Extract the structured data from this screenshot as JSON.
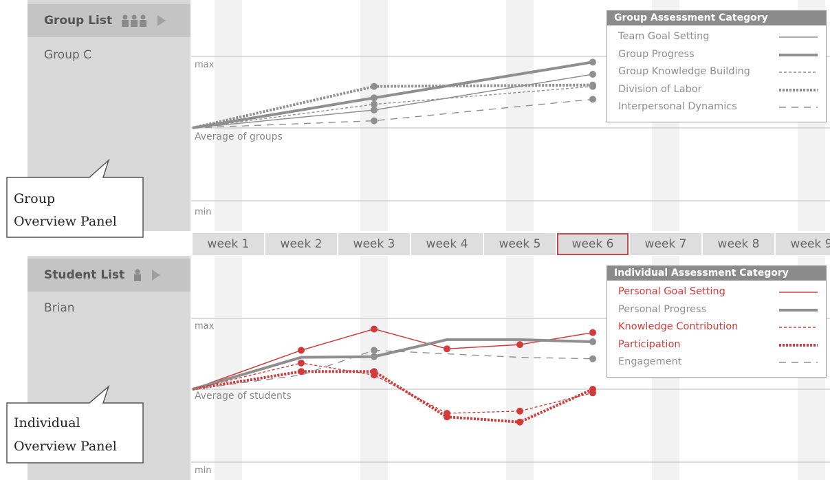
{
  "group_panel": {
    "header": "Group List",
    "item": "Group C",
    "callout": [
      "Group",
      "Overview Panel"
    ],
    "max_label": "max",
    "avg_label": "Average of groups",
    "min_label": "min"
  },
  "student_panel": {
    "header": "Student List",
    "item": "Brian",
    "callout": [
      "Individual",
      "Overview Panel"
    ],
    "max_label": "max",
    "avg_label": "Average of students",
    "min_label": "min"
  },
  "weeks": [
    "week 1",
    "week 2",
    "week 3",
    "week 4",
    "week 5",
    "week 6",
    "week 7",
    "week 8",
    "week 9"
  ],
  "selected_week": "week 6",
  "group_legend": {
    "title": "Group Assessment Category",
    "items": [
      "Team Goal Setting",
      "Group Progress",
      "Group Knowledge Building",
      "Division of Labor",
      "Interpersonal Dynamics"
    ]
  },
  "individual_legend": {
    "title": "Individual Assessment Category",
    "items": [
      "Personal Goal Setting",
      "Personal Progress",
      "Knowledge Contribution",
      "Participation",
      "Engagement"
    ]
  },
  "colors": {
    "grey": "#8f8f8f",
    "red": "#d23b3b",
    "sidebar": "#d8d8d8",
    "header": "#c4c4c4",
    "selected_border": "#c24a4a"
  },
  "chart_data": [
    {
      "type": "line",
      "x": [
        "week 1",
        "week 2",
        "week 3",
        "week 4",
        "week 5",
        "week 6"
      ],
      "ylabels": [
        "max",
        "Average of groups",
        "min"
      ],
      "series": [
        {
          "name": "Team Goal Setting",
          "style": "thin-solid",
          "color": "#8f8f8f",
          "points": [
            [
              "week 1",
              0
            ],
            [
              "week 3",
              0.25
            ],
            [
              "week 6",
              0.75
            ]
          ]
        },
        {
          "name": "Group Progress",
          "style": "thick-solid",
          "color": "#8f8f8f",
          "points": [
            [
              "week 1",
              0
            ],
            [
              "week 3",
              0.42
            ],
            [
              "week 6",
              0.92
            ]
          ]
        },
        {
          "name": "Group Knowledge Building",
          "style": "thin-dashed",
          "color": "#8f8f8f",
          "points": [
            [
              "week 1",
              0
            ],
            [
              "week 3",
              0.33
            ],
            [
              "week 6",
              0.58
            ]
          ]
        },
        {
          "name": "Division of Labor",
          "style": "thick-dotted",
          "color": "#8f8f8f",
          "points": [
            [
              "week 1",
              0
            ],
            [
              "week 3",
              0.58
            ],
            [
              "week 6",
              0.6
            ]
          ]
        },
        {
          "name": "Interpersonal Dynamics",
          "style": "long-dashed",
          "color": "#8f8f8f",
          "points": [
            [
              "week 1",
              0
            ],
            [
              "week 3",
              0.1
            ],
            [
              "week 6",
              0.4
            ]
          ]
        }
      ]
    },
    {
      "type": "line",
      "x": [
        "week 1",
        "week 2",
        "week 3",
        "week 4",
        "week 5",
        "week 6"
      ],
      "ylabels": [
        "max",
        "Average of students",
        "min"
      ],
      "series": [
        {
          "name": "Personal Goal Setting",
          "style": "thin-solid",
          "color": "#d23b3b",
          "highlight": true,
          "points": [
            [
              "week 1",
              0
            ],
            [
              "week 2",
              0.55
            ],
            [
              "week 3",
              0.85
            ],
            [
              "week 4",
              0.57
            ],
            [
              "week 5",
              0.63
            ],
            [
              "week 6",
              0.8
            ]
          ]
        },
        {
          "name": "Personal Progress",
          "style": "thick-solid",
          "color": "#8f8f8f",
          "points": [
            [
              "week 1",
              0
            ],
            [
              "week 2",
              0.45
            ],
            [
              "week 3",
              0.46
            ],
            [
              "week 4",
              0.7
            ],
            [
              "week 5",
              0.7
            ],
            [
              "week 6",
              0.67
            ]
          ]
        },
        {
          "name": "Knowledge Contribution",
          "style": "thin-dashed",
          "color": "#d23b3b",
          "highlight": true,
          "points": [
            [
              "week 1",
              0
            ],
            [
              "week 2",
              0.37
            ],
            [
              "week 3",
              0.2
            ],
            [
              "week 4",
              -0.33
            ],
            [
              "week 5",
              -0.3
            ],
            [
              "week 6",
              -0.05
            ]
          ]
        },
        {
          "name": "Participation",
          "style": "thick-dotted",
          "color": "#d23b3b",
          "highlight": true,
          "points": [
            [
              "week 1",
              0
            ],
            [
              "week 2",
              0.25
            ],
            [
              "week 3",
              0.25
            ],
            [
              "week 4",
              -0.38
            ],
            [
              "week 5",
              -0.45
            ],
            [
              "week 6",
              0
            ]
          ]
        },
        {
          "name": "Engagement",
          "style": "long-dashed",
          "color": "#8f8f8f",
          "points": [
            [
              "week 1",
              0
            ],
            [
              "week 2",
              0.2
            ],
            [
              "week 3",
              0.55
            ],
            [
              "week 4",
              0.5
            ],
            [
              "week 5",
              0.45
            ],
            [
              "week 6",
              0.43
            ]
          ]
        }
      ]
    }
  ]
}
